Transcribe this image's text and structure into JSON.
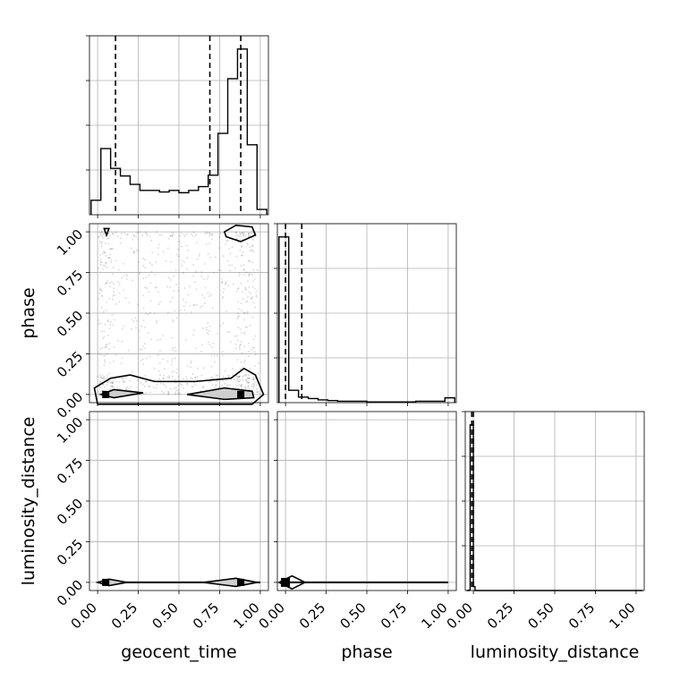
{
  "chart_data": {
    "type": "corner",
    "parameters": [
      "geocent_time",
      "phase",
      "luminosity_distance"
    ],
    "tick_labels": [
      "0.00",
      "0.25",
      "0.50",
      "0.75",
      "1.00"
    ],
    "axis_range": [
      -0.05,
      1.05
    ],
    "grid": true,
    "diagonal_histograms": [
      {
        "parameter": "geocent_time",
        "bin_edges": [
          -0.04,
          0.02,
          0.08,
          0.14,
          0.2,
          0.26,
          0.32,
          0.38,
          0.44,
          0.5,
          0.56,
          0.62,
          0.68,
          0.74,
          0.8,
          0.86,
          0.92,
          0.98,
          1.04
        ],
        "counts": [
          19,
          87,
          61,
          51,
          40,
          32,
          32,
          30,
          32,
          29,
          32,
          37,
          52,
          107,
          179,
          218,
          92,
          7
        ],
        "quantile_lines": [
          0.11,
          0.69,
          0.88
        ]
      },
      {
        "parameter": "phase",
        "bin_edges": [
          -0.04,
          0.02,
          0.08,
          0.14,
          0.2,
          0.26,
          0.32,
          0.38,
          0.44,
          0.5,
          0.56,
          0.62,
          0.68,
          0.74,
          0.8,
          0.86,
          0.92,
          0.98,
          1.04
        ],
        "counts": [
          241,
          18,
          8,
          6,
          4,
          3,
          2,
          2,
          2,
          1,
          1,
          1,
          1,
          1,
          2,
          2,
          2,
          7
        ],
        "quantile_lines": [
          0.0,
          0.1
        ]
      },
      {
        "parameter": "luminosity_distance",
        "bin_edges": [
          -0.04,
          -0.03,
          -0.02,
          -0.01,
          0.0,
          0.01,
          0.02,
          1.04
        ],
        "counts": [
          0,
          1,
          500,
          500,
          12,
          0,
          0
        ],
        "quantile_lines": [
          -0.01,
          0.0
        ]
      }
    ],
    "scatter_panels": [
      {
        "x": "geocent_time",
        "y": "phase",
        "samples_range_x": [
          0.0,
          1.0
        ],
        "samples_range_y": [
          0.0,
          1.0
        ],
        "density_peaks": [
          {
            "x": 0.88,
            "y": 0.0
          },
          {
            "x": 0.05,
            "y": 0.0
          },
          {
            "x": 0.88,
            "y": 1.0
          },
          {
            "x": 0.05,
            "y": 1.0
          }
        ]
      },
      {
        "x": "geocent_time",
        "y": "luminosity_distance",
        "density_peaks": [
          {
            "x": 0.88,
            "y": 0.0
          },
          {
            "x": 0.05,
            "y": 0.0
          }
        ]
      },
      {
        "x": "phase",
        "y": "luminosity_distance",
        "density_peaks": [
          {
            "x": 0.0,
            "y": 0.0
          }
        ]
      }
    ]
  }
}
